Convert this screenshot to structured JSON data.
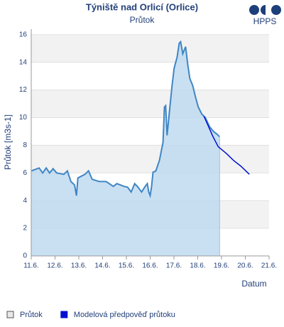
{
  "chart_data": {
    "type": "line",
    "title": "Týniště nad Orlicí (Orlice)",
    "subtitle": "Průtok",
    "logo": "HPPS",
    "y_label": "Průtok [m3s-1]",
    "x_label": "Datum",
    "xlim": [
      11,
      21
    ],
    "xticks": [
      {
        "value": 11,
        "label": "11.6."
      },
      {
        "value": 12,
        "label": "12.6."
      },
      {
        "value": 13,
        "label": "13.6."
      },
      {
        "value": 14,
        "label": "14.6."
      },
      {
        "value": 15,
        "label": "15.6."
      },
      {
        "value": 16,
        "label": "16.6."
      },
      {
        "value": 17,
        "label": "17.6."
      },
      {
        "value": 18,
        "label": "18.6."
      },
      {
        "value": 19,
        "label": "19.6."
      },
      {
        "value": 20,
        "label": "20.6."
      },
      {
        "value": 21,
        "label": "21.6."
      }
    ],
    "ylim": [
      0,
      16.4
    ],
    "yticks": [
      0,
      2,
      4,
      6,
      8,
      10,
      12,
      14,
      16
    ],
    "grid": true,
    "series": [
      {
        "name": "Průtok",
        "color": "#3f86c4",
        "fill": "#bcd8f0",
        "area": true,
        "x": [
          11.0,
          11.33,
          11.48,
          11.63,
          11.77,
          11.92,
          12.07,
          12.37,
          12.52,
          12.67,
          12.82,
          12.9,
          12.96,
          13.26,
          13.41,
          13.56,
          13.86,
          14.15,
          14.45,
          14.6,
          14.75,
          14.9,
          15.05,
          15.2,
          15.35,
          15.49,
          15.64,
          15.79,
          15.88,
          15.94,
          16.0,
          16.06,
          16.12,
          16.24,
          16.39,
          16.54,
          16.6,
          16.65,
          16.71,
          16.77,
          16.83,
          16.92,
          17.01,
          17.13,
          17.22,
          17.28,
          17.37,
          17.49,
          17.58,
          17.67,
          17.79,
          17.9,
          18.02,
          18.17,
          18.32,
          18.5,
          18.68,
          18.8,
          18.92
        ],
        "values": [
          6.15,
          6.36,
          6.0,
          6.36,
          6.0,
          6.31,
          6.0,
          5.9,
          6.15,
          5.38,
          5.13,
          4.36,
          5.64,
          5.9,
          6.15,
          5.54,
          5.38,
          5.38,
          5.03,
          5.23,
          5.13,
          5.03,
          4.97,
          4.62,
          5.23,
          4.97,
          4.62,
          5.03,
          5.23,
          4.62,
          4.36,
          5.03,
          6.05,
          6.15,
          6.92,
          8.21,
          10.77,
          10.87,
          8.72,
          9.74,
          10.77,
          12.31,
          13.59,
          14.36,
          15.38,
          15.49,
          14.62,
          15.13,
          13.85,
          12.82,
          12.31,
          11.54,
          10.77,
          10.26,
          10.0,
          9.33,
          8.97,
          8.82,
          8.62
        ]
      },
      {
        "name": "Modelová předpověď průtoku",
        "color": "#0010d0",
        "area": false,
        "x": [
          18.26,
          18.47,
          18.62,
          18.86,
          19.21,
          19.51,
          19.81,
          20.17
        ],
        "values": [
          10.1,
          9.3,
          8.7,
          7.9,
          7.4,
          6.9,
          6.5,
          5.9
        ]
      }
    ]
  }
}
